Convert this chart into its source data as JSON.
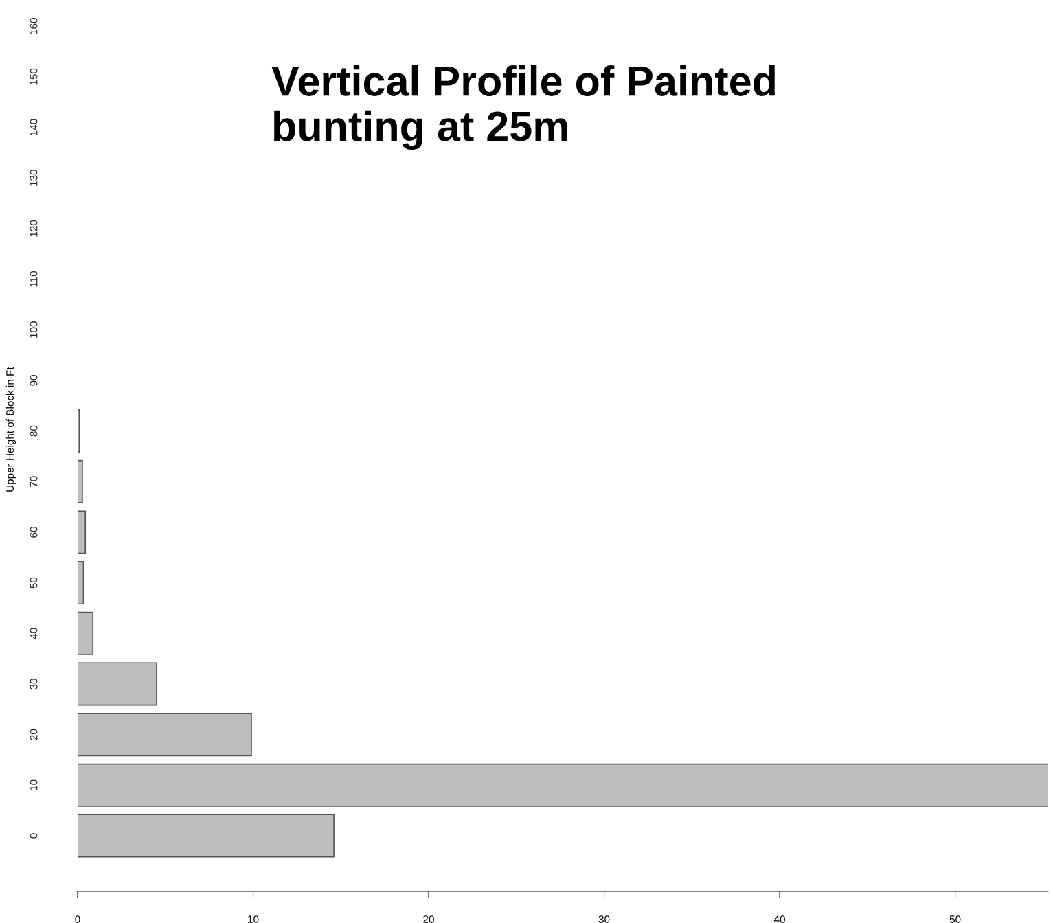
{
  "chart_data": {
    "type": "bar",
    "orientation": "horizontal",
    "title": "Vertical Profile of Painted\nbunting at 25m",
    "ylabel": "Upper Height of Block in Ft",
    "categories": [
      "160",
      "150",
      "140",
      "130",
      "120",
      "110",
      "100",
      "90",
      "80",
      "70",
      "60",
      "50",
      "40",
      "30",
      "20",
      "10",
      "0"
    ],
    "values": [
      0,
      0,
      0,
      0,
      0,
      0,
      0,
      0,
      0.1,
      0.27,
      0.44,
      0.33,
      0.87,
      4.5,
      9.9,
      55.3,
      14.6
    ],
    "color": "#bebebe",
    "xlim": [
      0,
      55.3
    ],
    "xticks": [
      0,
      10,
      20,
      30,
      40,
      50
    ],
    "grid": false
  }
}
